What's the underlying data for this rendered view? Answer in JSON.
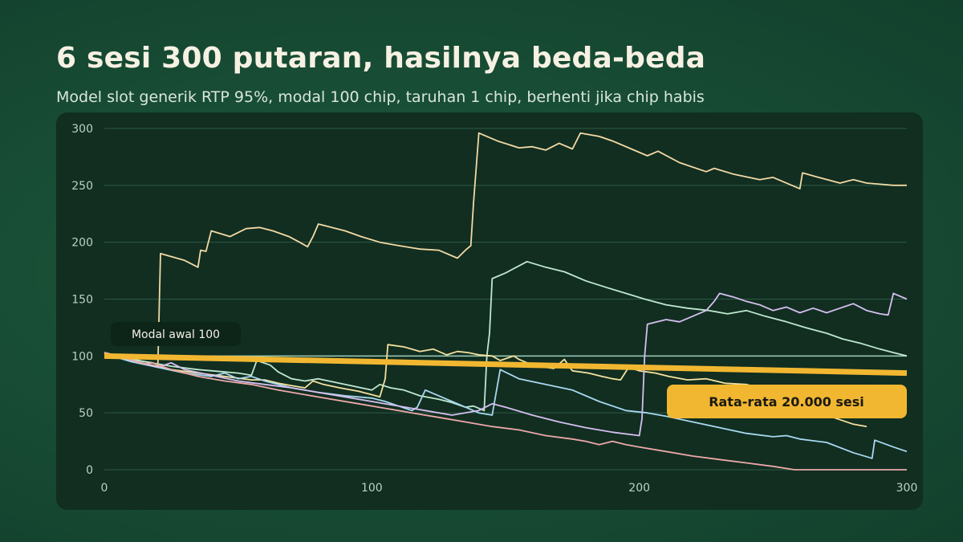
{
  "header": {
    "title": "6 sesi 300 putaran, hasilnya beda-beda",
    "subtitle": "Model slot generik RTP 95%, modal 100 chip, taruhan 1 chip, berhenti jika chip habis"
  },
  "colors": {
    "background": "#174a33",
    "panel": "#112e21",
    "grid": "#2d5a44",
    "average": "#f2b731",
    "start_line": "#b7e4cf"
  },
  "chart_data": {
    "type": "line",
    "title": "",
    "xlabel": "",
    "ylabel": "",
    "xlim": [
      0,
      300
    ],
    "ylim": [
      0,
      300
    ],
    "x_ticks": [
      "0",
      "100",
      "200",
      "300"
    ],
    "y_ticks": [
      "0",
      "50",
      "100",
      "150",
      "200",
      "250",
      "300"
    ],
    "grid": true,
    "reference_line": {
      "label": "Modal awal 100",
      "y": 100
    },
    "average": {
      "label": "Rata-rata 20.000 sesi",
      "points": [
        [
          0,
          100
        ],
        [
          300,
          85
        ]
      ]
    },
    "series": [
      {
        "color": "#f3d9a4",
        "points": [
          [
            0,
            103
          ],
          [
            10,
            97
          ],
          [
            18,
            94
          ],
          [
            20,
            92
          ],
          [
            21,
            190
          ],
          [
            30,
            184
          ],
          [
            35,
            178
          ],
          [
            36,
            193
          ],
          [
            38,
            192
          ],
          [
            40,
            210
          ],
          [
            47,
            205
          ],
          [
            53,
            212
          ],
          [
            58,
            213
          ],
          [
            63,
            210
          ],
          [
            69,
            205
          ],
          [
            73,
            200
          ],
          [
            76,
            196
          ],
          [
            78,
            205
          ],
          [
            80,
            216
          ],
          [
            90,
            210
          ],
          [
            96,
            205
          ],
          [
            103,
            200
          ],
          [
            110,
            197
          ],
          [
            118,
            194
          ],
          [
            125,
            193
          ],
          [
            132,
            186
          ],
          [
            135,
            193
          ],
          [
            137,
            197
          ],
          [
            138,
            234
          ],
          [
            140,
            296
          ],
          [
            147,
            289
          ],
          [
            155,
            283
          ],
          [
            160,
            284
          ],
          [
            165,
            281
          ],
          [
            170,
            287
          ],
          [
            175,
            282
          ],
          [
            178,
            296
          ],
          [
            185,
            293
          ],
          [
            190,
            289
          ],
          [
            197,
            282
          ],
          [
            203,
            276
          ],
          [
            207,
            280
          ],
          [
            215,
            270
          ],
          [
            225,
            262
          ],
          [
            228,
            265
          ],
          [
            235,
            260
          ],
          [
            245,
            255
          ],
          [
            250,
            257
          ],
          [
            257,
            250
          ],
          [
            260,
            247
          ],
          [
            261,
            261
          ],
          [
            267,
            257
          ],
          [
            275,
            252
          ],
          [
            280,
            255
          ],
          [
            285,
            252
          ],
          [
            290,
            251
          ],
          [
            295,
            250
          ],
          [
            300,
            250
          ]
        ]
      },
      {
        "color": "#bfe8cf",
        "points": [
          [
            0,
            103
          ],
          [
            15,
            95
          ],
          [
            25,
            91
          ],
          [
            35,
            88
          ],
          [
            45,
            86
          ],
          [
            50,
            85
          ],
          [
            55,
            83
          ],
          [
            57,
            96
          ],
          [
            62,
            92
          ],
          [
            65,
            86
          ],
          [
            70,
            80
          ],
          [
            75,
            78
          ],
          [
            80,
            80
          ],
          [
            90,
            75
          ],
          [
            100,
            70
          ],
          [
            103,
            75
          ],
          [
            107,
            72
          ],
          [
            112,
            70
          ],
          [
            118,
            65
          ],
          [
            125,
            62
          ],
          [
            130,
            59
          ],
          [
            135,
            55
          ],
          [
            138,
            56
          ],
          [
            142,
            52
          ],
          [
            143,
            100
          ],
          [
            144,
            120
          ],
          [
            145,
            168
          ],
          [
            150,
            173
          ],
          [
            158,
            183
          ],
          [
            165,
            178
          ],
          [
            172,
            174
          ],
          [
            180,
            166
          ],
          [
            188,
            160
          ],
          [
            195,
            155
          ],
          [
            202,
            150
          ],
          [
            210,
            145
          ],
          [
            218,
            142
          ],
          [
            226,
            140
          ],
          [
            233,
            137
          ],
          [
            240,
            140
          ],
          [
            247,
            135
          ],
          [
            255,
            130
          ],
          [
            262,
            125
          ],
          [
            270,
            120
          ],
          [
            276,
            115
          ],
          [
            283,
            111
          ],
          [
            290,
            106
          ],
          [
            295,
            103
          ],
          [
            300,
            100
          ]
        ]
      },
      {
        "color": "#f5e19e",
        "points": [
          [
            0,
            102
          ],
          [
            12,
            95
          ],
          [
            25,
            88
          ],
          [
            35,
            85
          ],
          [
            45,
            82
          ],
          [
            55,
            79
          ],
          [
            60,
            79
          ],
          [
            65,
            76
          ],
          [
            70,
            74
          ],
          [
            75,
            72
          ],
          [
            78,
            78
          ],
          [
            82,
            75
          ],
          [
            88,
            72
          ],
          [
            95,
            69
          ],
          [
            100,
            66
          ],
          [
            103,
            64
          ],
          [
            105,
            80
          ],
          [
            106,
            110
          ],
          [
            112,
            108
          ],
          [
            118,
            104
          ],
          [
            123,
            106
          ],
          [
            125,
            104
          ],
          [
            128,
            101
          ],
          [
            132,
            104
          ],
          [
            136,
            103
          ],
          [
            140,
            101
          ],
          [
            145,
            100
          ],
          [
            148,
            96
          ],
          [
            153,
            100
          ],
          [
            155,
            97
          ],
          [
            158,
            94
          ],
          [
            162,
            91
          ],
          [
            165,
            90
          ],
          [
            168,
            89
          ],
          [
            172,
            97
          ],
          [
            174,
            90
          ],
          [
            175,
            87
          ],
          [
            181,
            85
          ],
          [
            186,
            82
          ],
          [
            190,
            80
          ],
          [
            193,
            79
          ],
          [
            196,
            90
          ],
          [
            200,
            87
          ],
          [
            206,
            85
          ],
          [
            211,
            82
          ],
          [
            218,
            79
          ],
          [
            225,
            80
          ],
          [
            232,
            76
          ],
          [
            240,
            75
          ],
          [
            248,
            70
          ],
          [
            255,
            62
          ],
          [
            260,
            57
          ],
          [
            265,
            52
          ],
          [
            270,
            48
          ],
          [
            275,
            44
          ],
          [
            280,
            40
          ],
          [
            285,
            38
          ]
        ]
      },
      {
        "color": "#a8d8f0",
        "points": [
          [
            0,
            102
          ],
          [
            10,
            95
          ],
          [
            20,
            90
          ],
          [
            30,
            85
          ],
          [
            40,
            82
          ],
          [
            45,
            85
          ],
          [
            50,
            80
          ],
          [
            55,
            82
          ],
          [
            60,
            78
          ],
          [
            70,
            72
          ],
          [
            80,
            68
          ],
          [
            90,
            65
          ],
          [
            100,
            63
          ],
          [
            105,
            60
          ],
          [
            110,
            56
          ],
          [
            115,
            52
          ],
          [
            117,
            55
          ],
          [
            120,
            70
          ],
          [
            125,
            65
          ],
          [
            130,
            60
          ],
          [
            135,
            55
          ],
          [
            140,
            50
          ],
          [
            145,
            48
          ],
          [
            148,
            88
          ],
          [
            155,
            80
          ],
          [
            165,
            75
          ],
          [
            175,
            70
          ],
          [
            185,
            60
          ],
          [
            195,
            52
          ],
          [
            203,
            50
          ],
          [
            210,
            47
          ],
          [
            220,
            42
          ],
          [
            230,
            37
          ],
          [
            240,
            32
          ],
          [
            250,
            29
          ],
          [
            255,
            30
          ],
          [
            260,
            27
          ],
          [
            270,
            24
          ],
          [
            280,
            15
          ],
          [
            287,
            10
          ],
          [
            288,
            26
          ],
          [
            295,
            20
          ],
          [
            300,
            16
          ]
        ]
      },
      {
        "color": "#d6bff0",
        "points": [
          [
            0,
            103
          ],
          [
            12,
            95
          ],
          [
            20,
            90
          ],
          [
            25,
            94
          ],
          [
            30,
            88
          ],
          [
            40,
            83
          ],
          [
            50,
            78
          ],
          [
            60,
            75
          ],
          [
            70,
            72
          ],
          [
            80,
            68
          ],
          [
            90,
            64
          ],
          [
            100,
            60
          ],
          [
            110,
            56
          ],
          [
            120,
            52
          ],
          [
            130,
            48
          ],
          [
            140,
            52
          ],
          [
            145,
            58
          ],
          [
            150,
            55
          ],
          [
            160,
            48
          ],
          [
            170,
            42
          ],
          [
            180,
            37
          ],
          [
            190,
            33
          ],
          [
            200,
            30
          ],
          [
            201,
            45
          ],
          [
            202,
            100
          ],
          [
            203,
            128
          ],
          [
            210,
            132
          ],
          [
            215,
            130
          ],
          [
            220,
            135
          ],
          [
            225,
            140
          ],
          [
            228,
            148
          ],
          [
            230,
            155
          ],
          [
            235,
            152
          ],
          [
            240,
            148
          ],
          [
            245,
            145
          ],
          [
            250,
            140
          ],
          [
            255,
            143
          ],
          [
            260,
            138
          ],
          [
            265,
            142
          ],
          [
            270,
            138
          ],
          [
            275,
            142
          ],
          [
            280,
            146
          ],
          [
            285,
            140
          ],
          [
            290,
            137
          ],
          [
            293,
            136
          ],
          [
            295,
            155
          ],
          [
            300,
            150
          ]
        ]
      },
      {
        "color": "#eda8a8",
        "points": [
          [
            0,
            103
          ],
          [
            8,
            98
          ],
          [
            15,
            93
          ],
          [
            18,
            94
          ],
          [
            25,
            88
          ],
          [
            35,
            82
          ],
          [
            45,
            78
          ],
          [
            55,
            75
          ],
          [
            65,
            70
          ],
          [
            75,
            66
          ],
          [
            85,
            62
          ],
          [
            95,
            58
          ],
          [
            105,
            54
          ],
          [
            115,
            50
          ],
          [
            125,
            46
          ],
          [
            135,
            42
          ],
          [
            145,
            38
          ],
          [
            155,
            35
          ],
          [
            165,
            30
          ],
          [
            175,
            27
          ],
          [
            180,
            25
          ],
          [
            185,
            22
          ],
          [
            190,
            25
          ],
          [
            195,
            22
          ],
          [
            200,
            20
          ],
          [
            210,
            16
          ],
          [
            220,
            12
          ],
          [
            230,
            9
          ],
          [
            240,
            6
          ],
          [
            250,
            3
          ],
          [
            258,
            0
          ],
          [
            270,
            0
          ],
          [
            285,
            0
          ],
          [
            300,
            0
          ]
        ]
      }
    ]
  }
}
